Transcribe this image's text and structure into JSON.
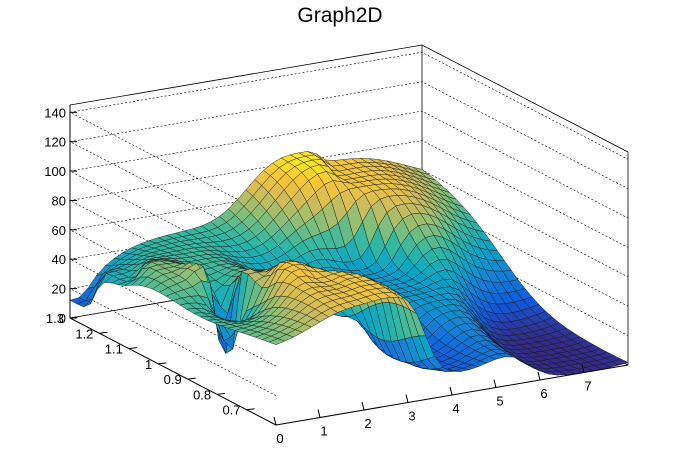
{
  "chart_data": {
    "type": "surface",
    "title": "Graph2D",
    "xlim": [
      0,
      8
    ],
    "ylim": [
      0.6,
      1.3
    ],
    "zlim": [
      0,
      145
    ],
    "x_ticks": [
      "0",
      "1",
      "2",
      "3",
      "4",
      "5",
      "6",
      "7"
    ],
    "y_ticks": [
      "0.7",
      "0.8",
      "0.9",
      "1",
      "1.1",
      "1.2",
      "1.3"
    ],
    "z_ticks": [
      "0",
      "20",
      "40",
      "60",
      "80",
      "100",
      "120",
      "140"
    ],
    "grid": true,
    "colormap": [
      "#352a87",
      "#0f5cdd",
      "#1481d6",
      "#06a4ca",
      "#2eb7a4",
      "#87bf77",
      "#d1bb59",
      "#fec832",
      "#f9fb0e"
    ],
    "features": [
      {
        "x": 0.0,
        "y": 1.28,
        "z": 12
      },
      {
        "x": 0.3,
        "y": 1.18,
        "z": 40
      },
      {
        "x": 0.6,
        "y": 1.08,
        "z": 55
      },
      {
        "x": 1.0,
        "y": 1.0,
        "z": 62
      },
      {
        "x": 1.45,
        "y": 0.92,
        "z": 66
      },
      {
        "x": 1.2,
        "y": 0.95,
        "z": 5
      },
      {
        "x": 1.85,
        "y": 0.8,
        "z": 78
      },
      {
        "x": 2.0,
        "y": 0.75,
        "z": 72
      },
      {
        "x": 2.55,
        "y": 0.7,
        "z": 75
      },
      {
        "x": 3.2,
        "y": 0.93,
        "z": 30
      },
      {
        "x": 5.3,
        "y": 1.28,
        "z": 86
      },
      {
        "x": 5.75,
        "y": 1.22,
        "z": 75
      },
      {
        "x": 5.1,
        "y": 1.0,
        "z": 30
      },
      {
        "x": 4.0,
        "y": 0.75,
        "z": 10
      },
      {
        "x": 7.0,
        "y": 0.7,
        "z": 0
      }
    ]
  }
}
